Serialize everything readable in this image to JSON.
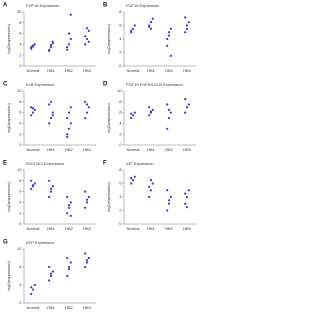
{
  "chart_data": [
    {
      "type": "strip",
      "panel": "A",
      "title": "FGF16 Expression",
      "ylabel": "log2(expression)",
      "categories": [
        "Normal",
        "HB1",
        "HB2",
        "HB3"
      ],
      "points": [
        [
          3.5,
          3.8,
          4,
          3.2,
          3.6
        ],
        [
          2.8,
          3.5,
          4.2,
          3,
          3.9,
          4.5
        ],
        [
          3,
          4,
          5,
          3.5,
          6,
          9.5
        ],
        [
          4,
          5,
          6.5,
          5.5,
          7,
          4.5
        ]
      ],
      "ylim": [
        0,
        10
      ],
      "yticks": [
        0,
        2,
        4,
        6,
        8,
        10
      ],
      "color": "#3a3ad0"
    },
    {
      "type": "strip",
      "panel": "B",
      "title": "FGF18 Expression",
      "ylabel": "log2(expression)",
      "categories": [
        "Normal",
        "HB1",
        "HB2",
        "HB3"
      ],
      "points": [
        [
          5,
          5.5,
          6,
          5.2
        ],
        [
          5.8,
          6.5,
          7,
          6,
          5.5
        ],
        [
          4,
          5,
          5.5,
          3,
          4.5,
          1.5
        ],
        [
          5,
          6,
          6.5,
          7.2,
          5.5
        ]
      ],
      "ylim": [
        0,
        8
      ],
      "yticks": [
        0,
        2,
        4,
        6,
        8
      ],
      "color": "#3a3ad0"
    },
    {
      "type": "strip",
      "panel": "C",
      "title": "KLB Expression",
      "ylabel": "log2(expression)",
      "categories": [
        "Normal",
        "HB1",
        "HB2",
        "HB3"
      ],
      "points": [
        [
          5.5,
          6,
          6.5,
          7,
          6.8
        ],
        [
          4,
          5,
          6,
          7.5,
          8,
          5.5
        ],
        [
          2,
          3,
          4,
          5,
          6,
          7,
          1.5
        ],
        [
          5,
          6,
          7,
          8,
          7.5
        ]
      ],
      "ylim": [
        0,
        10
      ],
      "yticks": [
        0,
        2,
        4,
        6,
        8,
        10
      ],
      "color": "#3a3ad0"
    },
    {
      "type": "strip",
      "panel": "D",
      "title": "FGF19-FGFR4-KLB Expression",
      "ylabel": "log2(expression)",
      "categories": [
        "Normal",
        "HB1",
        "HB2",
        "HB3"
      ],
      "points": [
        [
          5,
          5.5,
          6,
          5.8
        ],
        [
          5.5,
          6,
          6.5,
          7,
          6.2
        ],
        [
          3,
          5,
          6,
          7.5,
          6.5
        ],
        [
          6,
          7,
          7.5,
          8.5,
          7
        ]
      ],
      "ylim": [
        0,
        10
      ],
      "yticks": [
        0,
        2,
        4,
        6,
        8,
        10
      ],
      "color": "#3a3ad0"
    },
    {
      "type": "strip",
      "panel": "E",
      "title": "SULT1E1 Expression",
      "ylabel": "log2(expression)",
      "categories": [
        "Normal",
        "HB1",
        "HB2",
        "HB3"
      ],
      "points": [
        [
          6.5,
          7,
          7.5,
          8,
          7.2
        ],
        [
          5,
          6,
          7,
          8,
          6.5
        ],
        [
          2,
          3,
          4,
          5,
          3.5,
          1.5
        ],
        [
          3,
          4,
          5,
          6,
          4.5
        ]
      ],
      "ylim": [
        0,
        10
      ],
      "yticks": [
        0,
        2,
        4,
        6,
        8,
        10
      ],
      "color": "#3a3ad0"
    },
    {
      "type": "strip",
      "panel": "F",
      "title": "IGF Expression",
      "ylabel": "log2(expression)",
      "categories": [
        "Normal",
        "HB1",
        "HB2",
        "HB3"
      ],
      "points": [
        [
          6,
          6.5,
          7,
          6.8
        ],
        [
          4,
          5,
          6,
          5.5,
          6.5
        ],
        [
          2,
          3,
          4,
          5,
          3.5
        ],
        [
          3,
          4,
          5,
          4.5,
          2.5
        ]
      ],
      "ylim": [
        0,
        8
      ],
      "yticks": [
        0,
        2,
        4,
        6,
        8
      ],
      "color": "#3a3ad0"
    },
    {
      "type": "strip",
      "panel": "G",
      "title": "AFP Expression",
      "ylabel": "log2(expression)",
      "categories": [
        "Normal",
        "HB1",
        "HB2",
        "HB3"
      ],
      "points": [
        [
          2,
          3,
          4,
          3.5
        ],
        [
          5,
          6,
          7,
          8,
          6.5
        ],
        [
          6,
          8,
          9,
          10,
          7.5
        ],
        [
          8,
          9,
          10,
          11,
          9.5
        ]
      ],
      "ylim": [
        0,
        12
      ],
      "yticks": [
        0,
        4,
        8,
        12
      ],
      "color": "#3a3ad0"
    }
  ]
}
